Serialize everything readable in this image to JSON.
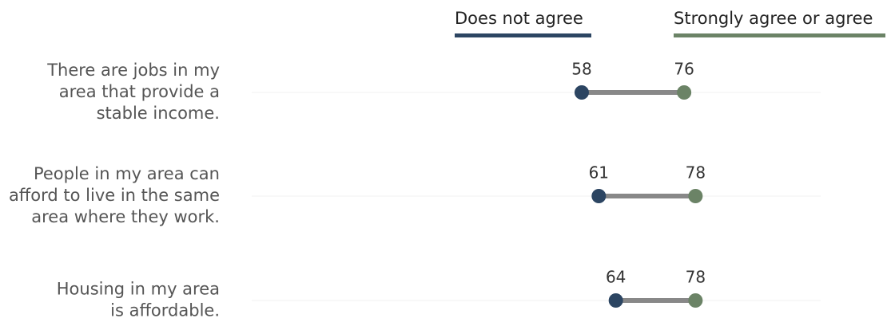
{
  "chart_data": {
    "type": "dumbbell",
    "categories": [
      [
        "There are jobs in my",
        "area that provide a",
        "stable income."
      ],
      [
        "People in my area can",
        "afford to live in the same",
        "area where they work."
      ],
      [
        "Housing in my area",
        "is affordable."
      ]
    ],
    "series": [
      {
        "name": "Does not agree",
        "color": "#2c4562",
        "values": [
          58,
          61,
          64
        ]
      },
      {
        "name": "Strongly agree or agree",
        "color": "#6b8366",
        "values": [
          76,
          78,
          78
        ]
      }
    ],
    "xlim": [
      0,
      100
    ],
    "grid": true
  }
}
